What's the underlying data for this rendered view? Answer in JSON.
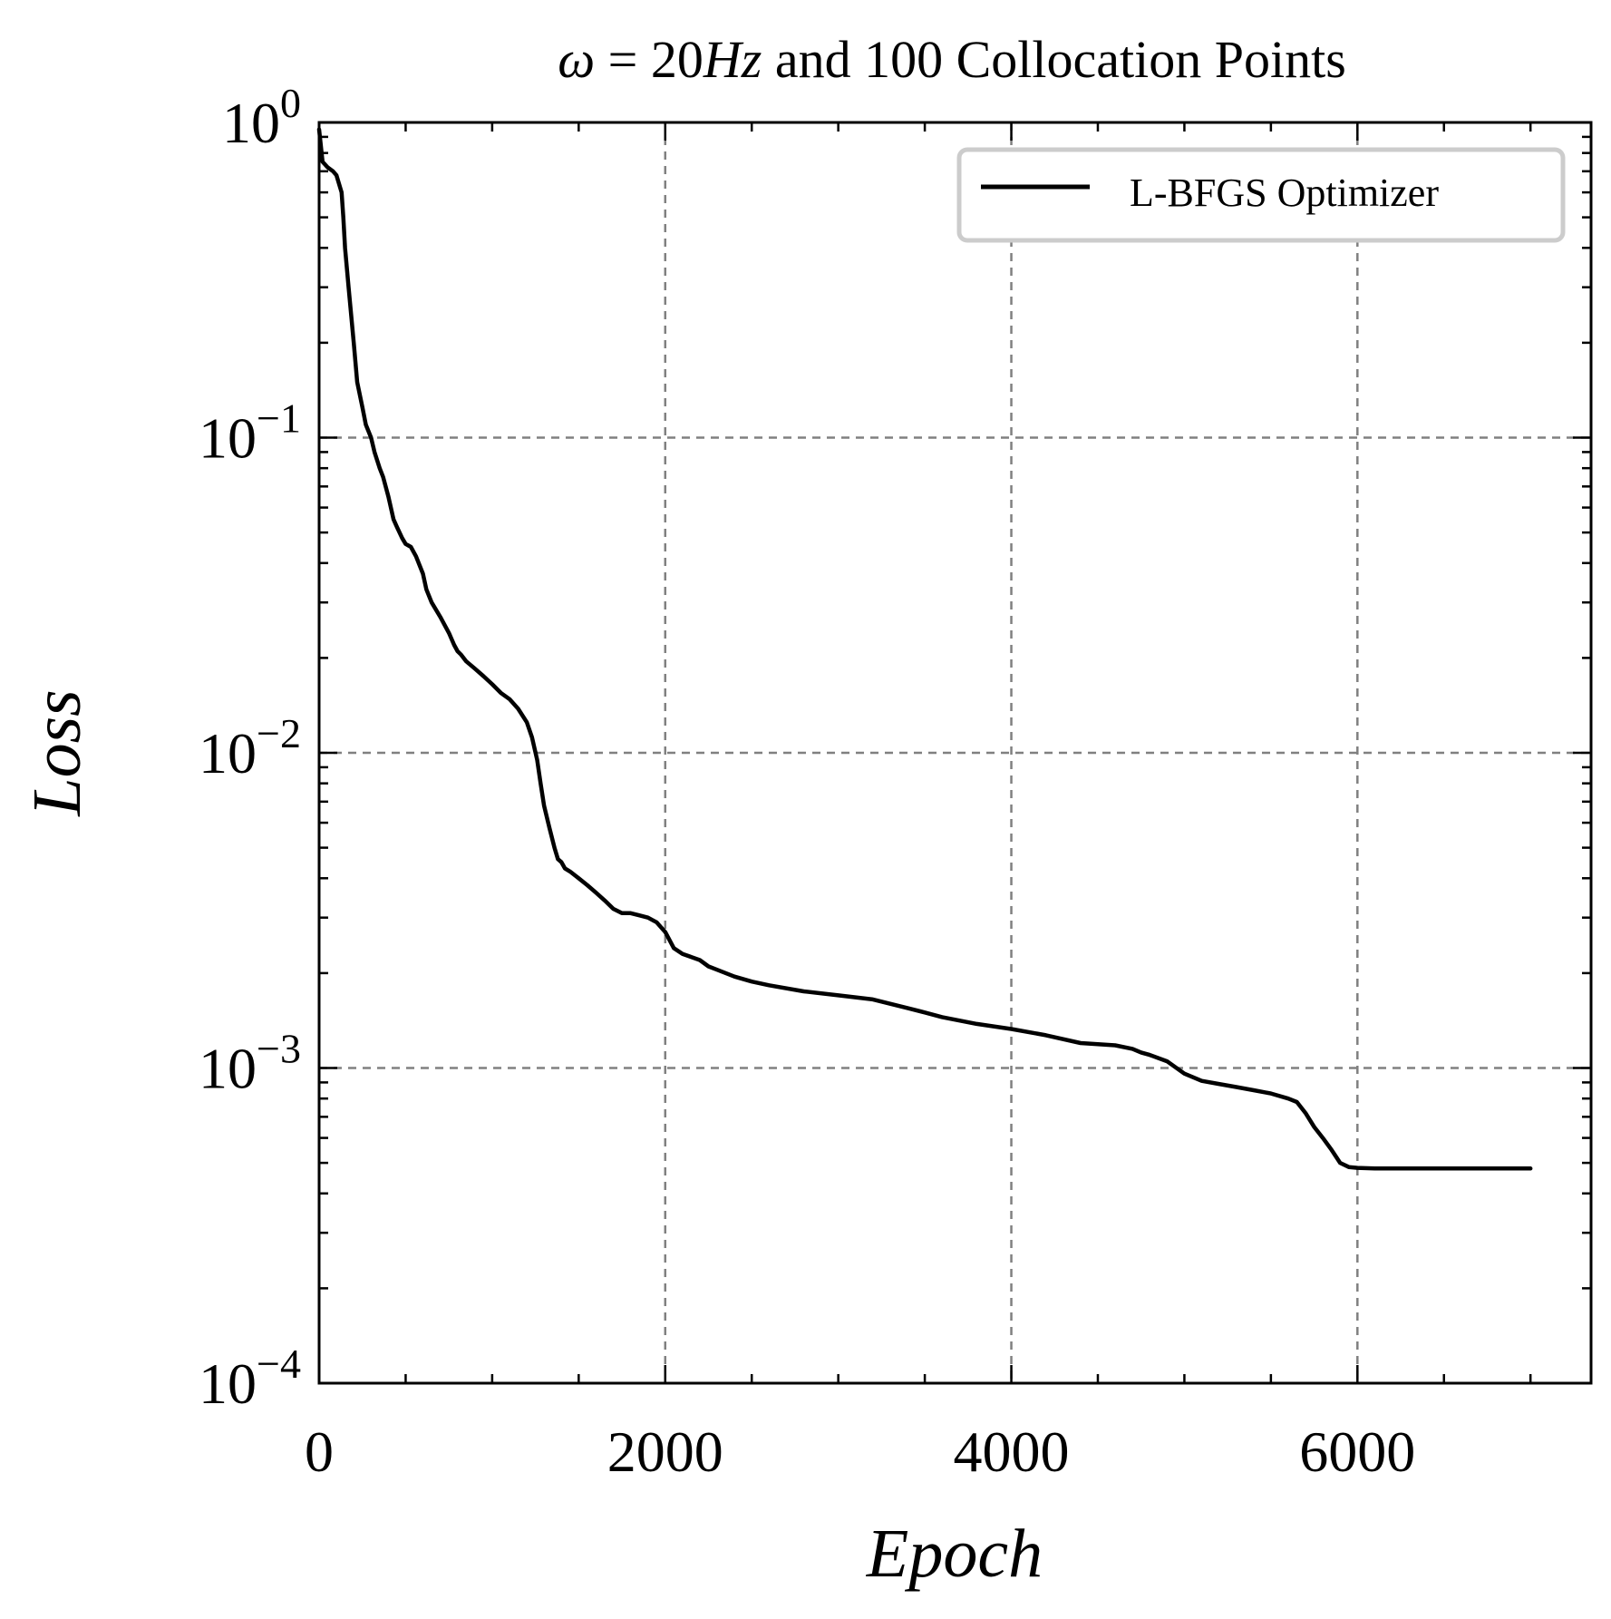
{
  "chart_data": {
    "type": "line",
    "title": "ω = 20Hz and 100 Collocation Points",
    "title_parts": {
      "omega": "ω",
      "equals": " = ",
      "number": "20",
      "unit": "Hz",
      "rest": " and 100 Collocation Points"
    },
    "xlabel": "Epoch",
    "ylabel": "Loss",
    "xlim": [
      0,
      7350
    ],
    "ylim": [
      0.0001,
      1
    ],
    "yscale": "log",
    "grid": true,
    "legend_position": "top-right",
    "x_ticks": [
      {
        "value": 0,
        "label": "0"
      },
      {
        "value": 2000,
        "label": "2000"
      },
      {
        "value": 4000,
        "label": "4000"
      },
      {
        "value": 6000,
        "label": "6000"
      }
    ],
    "y_ticks": [
      {
        "value": 1,
        "base": "10",
        "exp": "0"
      },
      {
        "value": 0.1,
        "base": "10",
        "exp": "−1"
      },
      {
        "value": 0.01,
        "base": "10",
        "exp": "−2"
      },
      {
        "value": 0.001,
        "base": "10",
        "exp": "−3"
      },
      {
        "value": 0.0001,
        "base": "10",
        "exp": "−4"
      }
    ],
    "series": [
      {
        "name": "L-BFGS Optimizer",
        "color": "#000000",
        "x": [
          0,
          20,
          50,
          80,
          100,
          130,
          140,
          150,
          170,
          200,
          220,
          250,
          270,
          300,
          320,
          350,
          370,
          400,
          430,
          450,
          480,
          500,
          530,
          560,
          600,
          620,
          650,
          700,
          750,
          780,
          800,
          820,
          850,
          900,
          950,
          1000,
          1050,
          1100,
          1150,
          1200,
          1230,
          1260,
          1280,
          1300,
          1330,
          1360,
          1380,
          1400,
          1420,
          1450,
          1500,
          1550,
          1600,
          1650,
          1700,
          1750,
          1800,
          1850,
          1900,
          1950,
          2000,
          2050,
          2100,
          2150,
          2200,
          2250,
          2300,
          2400,
          2500,
          2600,
          2800,
          3000,
          3200,
          3400,
          3500,
          3600,
          3800,
          4000,
          4200,
          4400,
          4600,
          4700,
          4750,
          4800,
          4900,
          5000,
          5100,
          5200,
          5300,
          5400,
          5500,
          5600,
          5650,
          5700,
          5750,
          5800,
          5850,
          5900,
          5950,
          6000,
          6100,
          6500,
          7000
        ],
        "y": [
          0.95,
          0.75,
          0.72,
          0.7,
          0.68,
          0.6,
          0.5,
          0.4,
          0.3,
          0.2,
          0.15,
          0.125,
          0.11,
          0.1,
          0.09,
          0.08,
          0.075,
          0.065,
          0.055,
          0.052,
          0.048,
          0.046,
          0.045,
          0.042,
          0.037,
          0.033,
          0.03,
          0.027,
          0.024,
          0.022,
          0.021,
          0.0205,
          0.0195,
          0.0185,
          0.0175,
          0.0165,
          0.0155,
          0.0148,
          0.0138,
          0.0125,
          0.0112,
          0.0095,
          0.008,
          0.0068,
          0.0058,
          0.005,
          0.0046,
          0.0045,
          0.0043,
          0.0042,
          0.004,
          0.0038,
          0.0036,
          0.0034,
          0.0032,
          0.0031,
          0.0031,
          0.00305,
          0.003,
          0.0029,
          0.0027,
          0.0024,
          0.0023,
          0.00225,
          0.0022,
          0.0021,
          0.00205,
          0.00195,
          0.00188,
          0.00183,
          0.00175,
          0.0017,
          0.00165,
          0.00155,
          0.0015,
          0.00145,
          0.00138,
          0.00133,
          0.00127,
          0.0012,
          0.00118,
          0.00115,
          0.00112,
          0.0011,
          0.00105,
          0.00096,
          0.00091,
          0.00089,
          0.00087,
          0.00085,
          0.00083,
          0.0008,
          0.00078,
          0.00072,
          0.00065,
          0.0006,
          0.00055,
          0.0005,
          0.000485,
          0.000482,
          0.00048,
          0.00048,
          0.00048
        ]
      }
    ]
  }
}
